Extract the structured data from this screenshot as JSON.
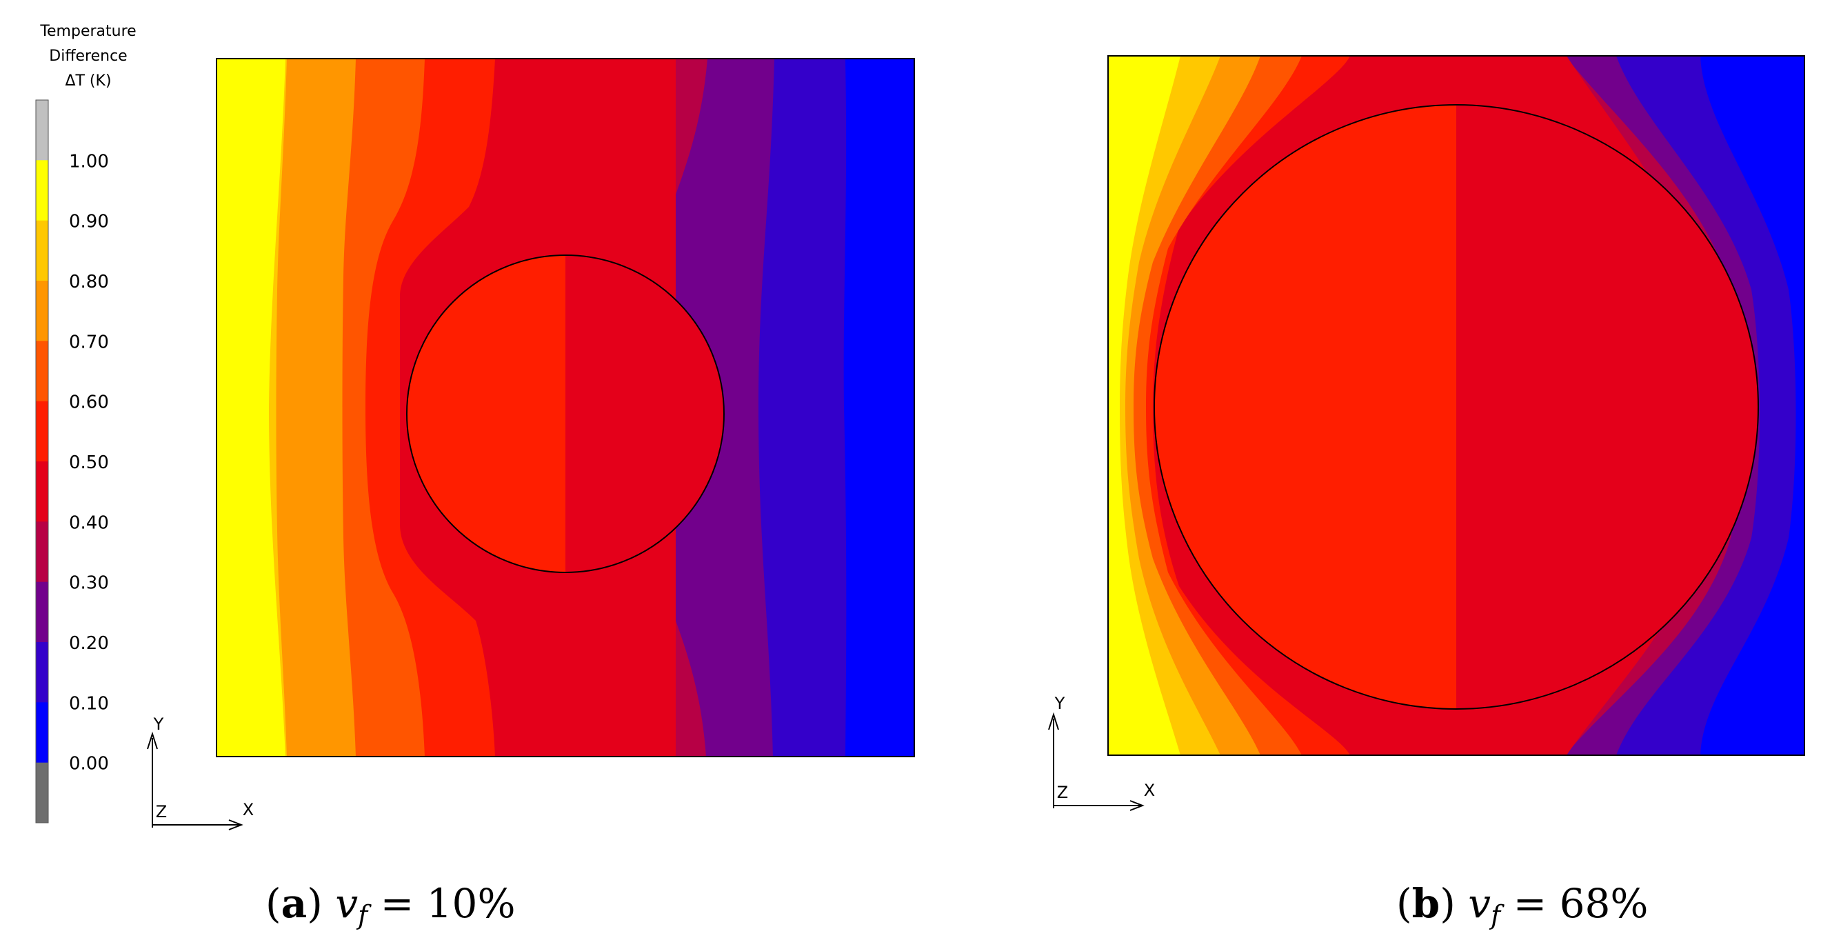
{
  "legend": {
    "title_lines": [
      "Temperature",
      "Difference",
      "ΔT (K)"
    ],
    "levels": [
      {
        "label": "",
        "color": "#c0c0c0"
      },
      {
        "label": "1.00",
        "color": "#ffff00"
      },
      {
        "label": "0.90",
        "color": "#ffc800"
      },
      {
        "label": "0.80",
        "color": "#ff9600"
      },
      {
        "label": "0.70",
        "color": "#ff5500"
      },
      {
        "label": "0.60",
        "color": "#ff1e00"
      },
      {
        "label": "0.50",
        "color": "#e4001a"
      },
      {
        "label": "0.40",
        "color": "#b70045"
      },
      {
        "label": "0.30",
        "color": "#72008c"
      },
      {
        "label": "0.20",
        "color": "#3400ca"
      },
      {
        "label": "0.10",
        "color": "#0000ff"
      },
      {
        "label": "0.00",
        "color": "#6e6e6e"
      }
    ]
  },
  "axes_triad": {
    "y": "Y",
    "z": "Z",
    "x": "X"
  },
  "panels": [
    {
      "id": "a",
      "letter": "a",
      "var": "v",
      "sub": "f",
      "value": " = 10%",
      "volume_fraction": 0.1
    },
    {
      "id": "b",
      "letter": "b",
      "var": "v",
      "sub": "f",
      "value": " = 68%",
      "volume_fraction": 0.68
    }
  ]
}
